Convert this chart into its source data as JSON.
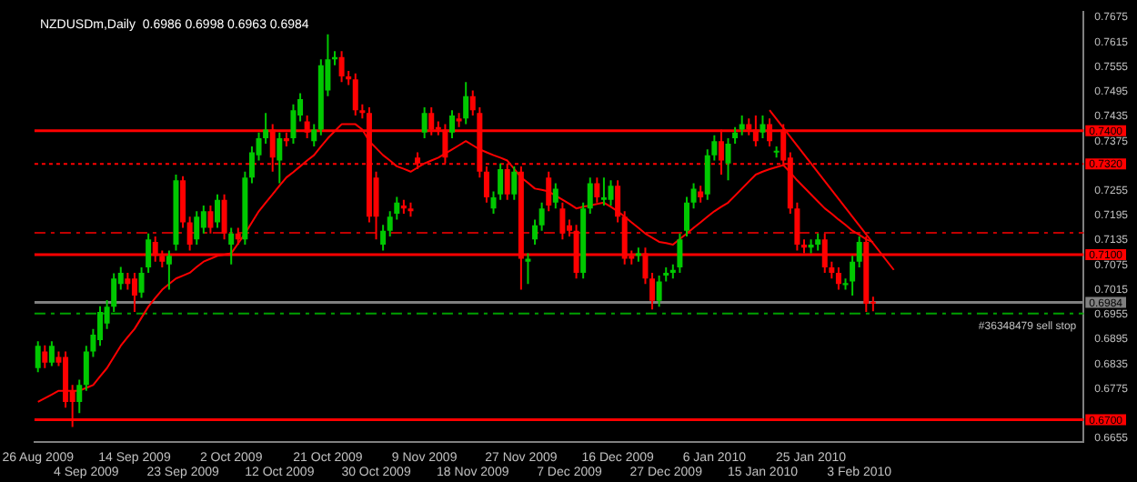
{
  "chart_data": {
    "type": "candlestick",
    "title": "NZDUSDm,Daily  0.6986 0.6998 0.6963 0.6984",
    "categories": [
      "26 Aug 2009",
      null,
      null,
      null,
      null,
      null,
      null,
      "4 Sep 2009",
      null,
      null,
      null,
      null,
      null,
      null,
      "14 Sep 2009",
      null,
      null,
      null,
      null,
      null,
      null,
      "23 Sep 2009",
      null,
      null,
      null,
      null,
      null,
      null,
      "2 Oct 2009",
      null,
      null,
      null,
      null,
      null,
      null,
      "12 Oct 2009",
      null,
      null,
      null,
      null,
      null,
      null,
      "21 Oct 2009",
      null,
      null,
      null,
      null,
      null,
      null,
      "30 Oct 2009",
      null,
      null,
      null,
      null,
      null,
      null,
      "9 Nov 2009",
      null,
      null,
      null,
      null,
      null,
      null,
      "18 Nov 2009",
      null,
      null,
      null,
      null,
      null,
      null,
      "27 Nov 2009",
      null,
      null,
      null,
      null,
      null,
      null,
      "7 Dec 2009",
      null,
      null,
      null,
      null,
      null,
      null,
      "16 Dec 2009",
      null,
      null,
      null,
      null,
      null,
      null,
      "27 Dec 2009",
      null,
      null,
      null,
      null,
      null,
      null,
      "6 Jan 2010",
      null,
      null,
      null,
      null,
      null,
      null,
      "15 Jan 2010",
      null,
      null,
      null,
      null,
      null,
      null,
      "25 Jan 2010",
      null,
      null,
      null,
      null,
      null,
      null,
      "3 Feb 2010",
      null,
      null,
      null,
      null,
      null,
      null,
      null,
      null,
      null,
      null,
      null,
      null,
      null,
      null,
      null,
      null,
      null,
      null,
      null,
      null,
      null,
      null,
      null,
      null,
      null,
      null,
      null,
      null,
      null,
      null,
      null,
      null
    ],
    "ohlc": [
      [
        0.6825,
        0.689,
        0.6815,
        0.6879
      ],
      [
        0.6865,
        0.688,
        0.6825,
        0.6838
      ],
      [
        0.6838,
        0.689,
        0.683,
        0.6879
      ],
      [
        0.6852,
        0.6865,
        0.683,
        0.6838
      ],
      [
        0.6852,
        0.6865,
        0.6729,
        0.6743
      ],
      [
        0.677,
        0.6784,
        0.6682,
        0.6743
      ],
      [
        0.6743,
        0.6797,
        0.6716,
        0.6784
      ],
      [
        0.6784,
        0.6879,
        0.677,
        0.6865
      ],
      [
        0.6865,
        0.692,
        0.6852,
        0.6906
      ],
      [
        0.6893,
        0.6975,
        0.6879,
        0.6961
      ],
      [
        0.6933,
        0.699,
        0.692,
        0.6974
      ],
      [
        0.6974,
        0.7055,
        0.6961,
        0.7042
      ],
      [
        0.7029,
        0.707,
        0.7015,
        0.7056
      ],
      [
        0.7042,
        0.7056,
        0.7015,
        0.7029
      ],
      [
        0.7042,
        0.7056,
        0.6961,
        0.7001
      ],
      [
        0.7008,
        0.7069,
        0.6995,
        0.7056
      ],
      [
        0.7069,
        0.7151,
        0.7056,
        0.7137
      ],
      [
        0.7131,
        0.7144,
        0.7083,
        0.7097
      ],
      [
        0.7097,
        0.711,
        0.7069,
        0.7083
      ],
      [
        0.7076,
        0.711,
        0.7015,
        0.7097
      ],
      [
        0.7124,
        0.7294,
        0.711,
        0.728
      ],
      [
        0.728,
        0.729,
        0.7165,
        0.7178
      ],
      [
        0.7178,
        0.7192,
        0.711,
        0.7124
      ],
      [
        0.7137,
        0.7205,
        0.7124,
        0.7192
      ],
      [
        0.7165,
        0.7219,
        0.7151,
        0.7205
      ],
      [
        0.7205,
        0.7219,
        0.7151,
        0.7165
      ],
      [
        0.7178,
        0.7246,
        0.7165,
        0.7233
      ],
      [
        0.7233,
        0.7246,
        0.7137,
        0.7151
      ],
      [
        0.7124,
        0.7165,
        0.7076,
        0.7151
      ],
      [
        0.7151,
        0.7165,
        0.7124,
        0.7137
      ],
      [
        0.7137,
        0.7301,
        0.7124,
        0.7287
      ],
      [
        0.7287,
        0.7362,
        0.7273,
        0.7348
      ],
      [
        0.7341,
        0.7396,
        0.7328,
        0.7382
      ],
      [
        0.7382,
        0.7443,
        0.7369,
        0.7403
      ],
      [
        0.7403,
        0.7416,
        0.7301,
        0.7335
      ],
      [
        0.7328,
        0.7396,
        0.7273,
        0.7382
      ],
      [
        0.7382,
        0.7396,
        0.7362,
        0.7375
      ],
      [
        0.7382,
        0.7464,
        0.7369,
        0.745
      ],
      [
        0.7437,
        0.7491,
        0.7423,
        0.7477
      ],
      [
        0.7423,
        0.7437,
        0.7382,
        0.7396
      ],
      [
        0.7375,
        0.7416,
        0.7362,
        0.7403
      ],
      [
        0.7403,
        0.7573,
        0.7389,
        0.7559
      ],
      [
        0.7498,
        0.7634,
        0.7484,
        0.7573
      ],
      [
        0.7573,
        0.7593,
        0.7559,
        0.7579
      ],
      [
        0.7579,
        0.7593,
        0.7518,
        0.7532
      ],
      [
        0.7532,
        0.7545,
        0.7511,
        0.7525
      ],
      [
        0.7525,
        0.7539,
        0.7437,
        0.745
      ],
      [
        0.745,
        0.7464,
        0.743,
        0.7443
      ],
      [
        0.7443,
        0.7457,
        0.7178,
        0.7192
      ],
      [
        0.7287,
        0.7301,
        0.7137,
        0.7192
      ],
      [
        0.7124,
        0.7172,
        0.711,
        0.7158
      ],
      [
        0.7158,
        0.7205,
        0.7144,
        0.7192
      ],
      [
        0.7199,
        0.724,
        0.7185,
        0.7226
      ],
      [
        0.7219,
        0.7233,
        0.7199,
        0.7212
      ],
      [
        0.7212,
        0.7226,
        0.7192,
        0.7205
      ],
      [
        0.7335,
        0.7348,
        0.7307,
        0.7321
      ],
      [
        0.7396,
        0.7457,
        0.7382,
        0.7443
      ],
      [
        0.7443,
        0.7457,
        0.7389,
        0.7403
      ],
      [
        0.7409,
        0.7423,
        0.7389,
        0.7403
      ],
      [
        0.7403,
        0.7416,
        0.7321,
        0.7335
      ],
      [
        0.7396,
        0.745,
        0.7382,
        0.7437
      ],
      [
        0.743,
        0.7443,
        0.7409,
        0.7423
      ],
      [
        0.743,
        0.7518,
        0.7416,
        0.7484
      ],
      [
        0.7484,
        0.7498,
        0.7437,
        0.745
      ],
      [
        0.7443,
        0.7457,
        0.7287,
        0.7301
      ],
      [
        0.7301,
        0.7314,
        0.7226,
        0.7239
      ],
      [
        0.7212,
        0.7253,
        0.7199,
        0.7239
      ],
      [
        0.7246,
        0.7321,
        0.7233,
        0.7307
      ],
      [
        0.7307,
        0.7321,
        0.7233,
        0.7246
      ],
      [
        0.7246,
        0.7314,
        0.7233,
        0.7301
      ],
      [
        0.7301,
        0.7314,
        0.7015,
        0.709
      ],
      [
        0.7083,
        0.7103,
        0.7029,
        0.709
      ],
      [
        0.7137,
        0.7185,
        0.7124,
        0.7171
      ],
      [
        0.7171,
        0.7226,
        0.7158,
        0.7212
      ],
      [
        0.7287,
        0.7301,
        0.7205,
        0.7219
      ],
      [
        0.7226,
        0.7273,
        0.7212,
        0.726
      ],
      [
        0.7212,
        0.7226,
        0.7137,
        0.7151
      ],
      [
        0.7171,
        0.7185,
        0.7144,
        0.7158
      ],
      [
        0.7158,
        0.7172,
        0.7042,
        0.7056
      ],
      [
        0.7056,
        0.7226,
        0.7042,
        0.7212
      ],
      [
        0.7212,
        0.7287,
        0.7199,
        0.7273
      ],
      [
        0.7273,
        0.7287,
        0.7226,
        0.7239
      ],
      [
        0.7233,
        0.7287,
        0.7219,
        0.7239
      ],
      [
        0.7233,
        0.728,
        0.7219,
        0.7267
      ],
      [
        0.7267,
        0.728,
        0.7178,
        0.7192
      ],
      [
        0.7192,
        0.7205,
        0.7076,
        0.709
      ],
      [
        0.7097,
        0.711,
        0.7076,
        0.709
      ],
      [
        0.7097,
        0.7117,
        0.7083,
        0.7103
      ],
      [
        0.7103,
        0.7117,
        0.7029,
        0.7042
      ],
      [
        0.7042,
        0.7056,
        0.6967,
        0.6988
      ],
      [
        0.6988,
        0.7049,
        0.6974,
        0.7035
      ],
      [
        0.7049,
        0.7069,
        0.7035,
        0.7056
      ],
      [
        0.7056,
        0.7076,
        0.7042,
        0.7063
      ],
      [
        0.7069,
        0.7151,
        0.7056,
        0.7137
      ],
      [
        0.7158,
        0.724,
        0.7144,
        0.7226
      ],
      [
        0.7226,
        0.7273,
        0.7212,
        0.726
      ],
      [
        0.7253,
        0.7267,
        0.7226,
        0.7239
      ],
      [
        0.7246,
        0.7355,
        0.7233,
        0.7341
      ],
      [
        0.7341,
        0.7389,
        0.7328,
        0.7375
      ],
      [
        0.7375,
        0.7403,
        0.7294,
        0.7328
      ],
      [
        0.7321,
        0.7382,
        0.728,
        0.7369
      ],
      [
        0.7382,
        0.7409,
        0.7369,
        0.7396
      ],
      [
        0.7403,
        0.7437,
        0.7389,
        0.7416
      ],
      [
        0.7416,
        0.743,
        0.7389,
        0.7403
      ],
      [
        0.7403,
        0.7437,
        0.7362,
        0.7375
      ],
      [
        0.7396,
        0.7437,
        0.7382,
        0.7416
      ],
      [
        0.7416,
        0.743,
        0.7362,
        0.7375
      ],
      [
        0.7348,
        0.7362,
        0.7335,
        0.7352
      ],
      [
        0.7403,
        0.7416,
        0.7314,
        0.7328
      ],
      [
        0.7335,
        0.7348,
        0.7199,
        0.7212
      ],
      [
        0.7212,
        0.7226,
        0.711,
        0.7124
      ],
      [
        0.7124,
        0.7137,
        0.7103,
        0.7117
      ],
      [
        0.7117,
        0.7137,
        0.7103,
        0.7124
      ],
      [
        0.7124,
        0.7151,
        0.711,
        0.7137
      ],
      [
        0.7137,
        0.7151,
        0.7056,
        0.7069
      ],
      [
        0.7069,
        0.7083,
        0.7042,
        0.7056
      ],
      [
        0.7056,
        0.7069,
        0.7015,
        0.7029
      ],
      [
        0.7026,
        0.7042,
        0.7015,
        0.7031
      ],
      [
        0.7035,
        0.7097,
        0.7001,
        0.7083
      ],
      [
        0.7083,
        0.7144,
        0.7069,
        0.7131
      ],
      [
        0.7131,
        0.7144,
        0.6961,
        0.6981
      ],
      [
        0.6986,
        0.6998,
        0.6963,
        0.6984
      ],
      null,
      null,
      null,
      null,
      null,
      null,
      null,
      null,
      null,
      null,
      null,
      null,
      null,
      null,
      null,
      null,
      null,
      null,
      null,
      null,
      null,
      null,
      null,
      null,
      null,
      null,
      null,
      null,
      null,
      null
    ],
    "series": [
      {
        "type": "line",
        "color": "#ff0000",
        "values": [
          0.6743,
          0.6752,
          0.6761,
          0.677,
          0.677,
          0.677,
          0.677,
          0.6777,
          0.6784,
          0.6805,
          0.6825,
          0.6852,
          0.6879,
          0.69,
          0.692,
          0.6947,
          0.6974,
          0.6995,
          0.7015,
          0.7029,
          0.7042,
          0.7049,
          0.7056,
          0.707,
          0.7083,
          0.709,
          0.7097,
          0.71,
          0.7103,
          0.7127,
          0.7151,
          0.7178,
          0.7205,
          0.7226,
          0.7246,
          0.7267,
          0.7287,
          0.73,
          0.7314,
          0.7328,
          0.7341,
          0.7362,
          0.7382,
          0.7399,
          0.7416,
          0.7416,
          0.7416,
          0.7403,
          0.7375,
          0.7358,
          0.7341,
          0.7328,
          0.7314,
          0.7308,
          0.7301,
          0.7311,
          0.7321,
          0.7328,
          0.7335,
          0.7345,
          0.7355,
          0.7365,
          0.7375,
          0.7365,
          0.7355,
          0.7348,
          0.7341,
          0.7335,
          0.7328,
          0.7308,
          0.7287,
          0.7274,
          0.726,
          0.7257,
          0.7253,
          0.7243,
          0.7233,
          0.7223,
          0.7212,
          0.7216,
          0.7219,
          0.7223,
          0.7226,
          0.7216,
          0.7205,
          0.7192,
          0.7178,
          0.7165,
          0.7151,
          0.7141,
          0.7131,
          0.7128,
          0.7124,
          0.7138,
          0.7151,
          0.7165,
          0.7178,
          0.7192,
          0.7205,
          0.7216,
          0.7226,
          0.7243,
          0.726,
          0.7277,
          0.7294,
          0.7301,
          0.7307,
          0.7312,
          0.7317,
          0.7299,
          0.728,
          0.7263,
          0.7246,
          0.7229,
          0.7212,
          0.7199,
          0.7185,
          0.7172,
          0.7158,
          0.7148,
          0.7137,
          0.713,
          null,
          null,
          null,
          null,
          null,
          null,
          null,
          null,
          null,
          null,
          null,
          null,
          null,
          null,
          null,
          null,
          null,
          null,
          null,
          null,
          null,
          null,
          null,
          null,
          null,
          null,
          null,
          null,
          null,
          null
        ]
      },
      {
        "type": "line",
        "color": "#ff0000",
        "values": [
          null,
          null,
          null,
          null,
          null,
          null,
          null,
          null,
          null,
          null,
          null,
          null,
          null,
          null,
          null,
          null,
          null,
          null,
          null,
          null,
          null,
          null,
          null,
          null,
          null,
          null,
          null,
          null,
          null,
          null,
          null,
          null,
          null,
          null,
          null,
          null,
          null,
          null,
          null,
          null,
          null,
          null,
          null,
          null,
          null,
          null,
          null,
          null,
          null,
          null,
          null,
          null,
          null,
          null,
          null,
          null,
          null,
          null,
          null,
          null,
          null,
          null,
          null,
          null,
          null,
          null,
          null,
          null,
          null,
          null,
          null,
          null,
          null,
          null,
          null,
          null,
          null,
          null,
          null,
          null,
          null,
          null,
          null,
          null,
          null,
          null,
          null,
          null,
          null,
          null,
          null,
          null,
          null,
          null,
          null,
          null,
          null,
          null,
          null,
          null,
          null,
          null,
          null,
          null,
          null,
          null,
          0.745,
          null,
          null,
          null,
          null,
          null,
          null,
          null,
          null,
          null,
          null,
          null,
          null,
          null,
          null,
          null,
          null,
          null,
          0.7063,
          null,
          null,
          null,
          null,
          null,
          null,
          null,
          null,
          null,
          null,
          null,
          null,
          null,
          null,
          null,
          null,
          null,
          null,
          null,
          null,
          null,
          null,
          null,
          null,
          null,
          null,
          null
        ]
      }
    ],
    "ylim": [
      0.6645,
      0.7688
    ],
    "yticks": [
      0.7675,
      0.7615,
      0.7555,
      0.7495,
      0.7435,
      0.7375,
      0.7255,
      0.7195,
      0.7135,
      0.7075,
      0.7015,
      0.6955,
      0.6895,
      0.6835,
      0.6775,
      0.6655
    ],
    "ref_lines": [
      {
        "axis": "y",
        "value": 0.74,
        "label": "0.7400",
        "color": "#ff0000",
        "line_style": "solid"
      },
      {
        "axis": "y",
        "value": 0.732,
        "label": "0.7320",
        "color": "#ff0000",
        "line_style": "dotted"
      },
      {
        "axis": "y",
        "value": 0.7153,
        "color": "#c00000",
        "line_style": "dashed"
      },
      {
        "axis": "y",
        "value": 0.71,
        "label": "0.7100",
        "color": "#ff0000",
        "line_style": "solid"
      },
      {
        "axis": "y",
        "value": 0.6984,
        "label": "0.6984",
        "color": "#808080",
        "line_style": "solid"
      },
      {
        "axis": "y",
        "value": 0.6957,
        "label": "#36348479 sell stop",
        "color": "#00a000",
        "line_style": "dashed"
      },
      {
        "axis": "y",
        "value": 0.67,
        "label": "0.6700",
        "color": "#ff0000",
        "line_style": "solid"
      }
    ]
  }
}
